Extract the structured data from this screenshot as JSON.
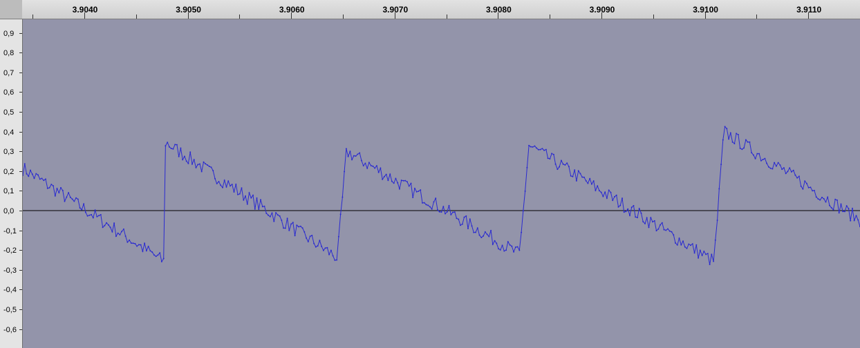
{
  "ruler": {
    "labels": [
      "3.9040",
      "3.9050",
      "3.9060",
      "3.9070",
      "3.9080",
      "3.9090",
      "3.9100",
      "3.9110"
    ]
  },
  "amplitude_scale": {
    "labels": [
      "0,9",
      "0,8",
      "0,7",
      "0,6",
      "0,5",
      "0,4",
      "0,3",
      "0,2",
      "0,1",
      "0,0",
      "-0,1",
      "-0,2",
      "-0,3",
      "-0,4",
      "-0,5",
      "-0,6"
    ]
  },
  "waveform": {
    "color": "#2a2ad0",
    "background": "#9394aa",
    "zero_line_color": "#000000",
    "time_range": [
      3.90364,
      3.91145
    ],
    "amplitude_range": [
      -0.7,
      0.94
    ],
    "cycle_peaks": [
      {
        "t": 3.90496,
        "peak": 0.35,
        "trough": -0.26
      },
      {
        "t": 3.90666,
        "peak": 0.3,
        "trough": -0.27
      },
      {
        "t": 3.90836,
        "peak": 0.33,
        "trough": -0.25
      },
      {
        "t": 3.91018,
        "peak": 0.4,
        "trough": -0.29
      }
    ]
  }
}
